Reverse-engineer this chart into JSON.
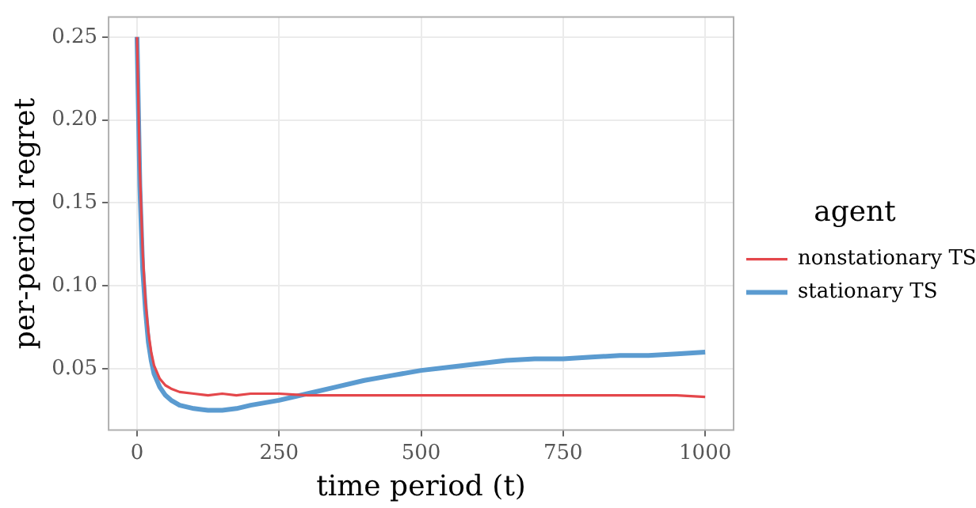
{
  "chart_data": {
    "type": "line",
    "xlabel": "time period (t)",
    "ylabel": "per-period regret",
    "legend_title": "agent",
    "x": [
      0,
      5,
      10,
      15,
      20,
      25,
      30,
      40,
      50,
      60,
      75,
      100,
      125,
      150,
      175,
      200,
      250,
      300,
      350,
      400,
      450,
      500,
      550,
      600,
      650,
      700,
      750,
      800,
      850,
      900,
      950,
      1000
    ],
    "series": [
      {
        "name": "nonstationary TS",
        "color": "#e4474b",
        "values": [
          0.25,
          0.17,
          0.12,
          0.09,
          0.072,
          0.06,
          0.052,
          0.044,
          0.04,
          0.038,
          0.036,
          0.035,
          0.034,
          0.035,
          0.034,
          0.035,
          0.035,
          0.034,
          0.034,
          0.034,
          0.034,
          0.034,
          0.034,
          0.034,
          0.034,
          0.034,
          0.034,
          0.034,
          0.034,
          0.034,
          0.034,
          0.033
        ]
      },
      {
        "name": "stationary TS",
        "color": "#5b9bd0",
        "values": [
          0.25,
          0.16,
          0.11,
          0.085,
          0.066,
          0.055,
          0.047,
          0.039,
          0.034,
          0.031,
          0.028,
          0.026,
          0.025,
          0.025,
          0.026,
          0.028,
          0.031,
          0.035,
          0.039,
          0.043,
          0.046,
          0.049,
          0.051,
          0.053,
          0.055,
          0.056,
          0.056,
          0.057,
          0.058,
          0.058,
          0.059,
          0.06
        ]
      }
    ],
    "xlim": [
      -50,
      1050
    ],
    "xticks": [
      0,
      250,
      500,
      750,
      1000
    ],
    "ylim": [
      0.013,
      0.262
    ],
    "yticks": [
      0.05,
      {
        "value": 0.1,
        "label": "0.10"
      },
      0.15,
      {
        "value": 0.2,
        "label": "0.20"
      },
      0.25
    ],
    "grid": true,
    "legend": "right",
    "marker": "none",
    "line_style": "solid"
  }
}
